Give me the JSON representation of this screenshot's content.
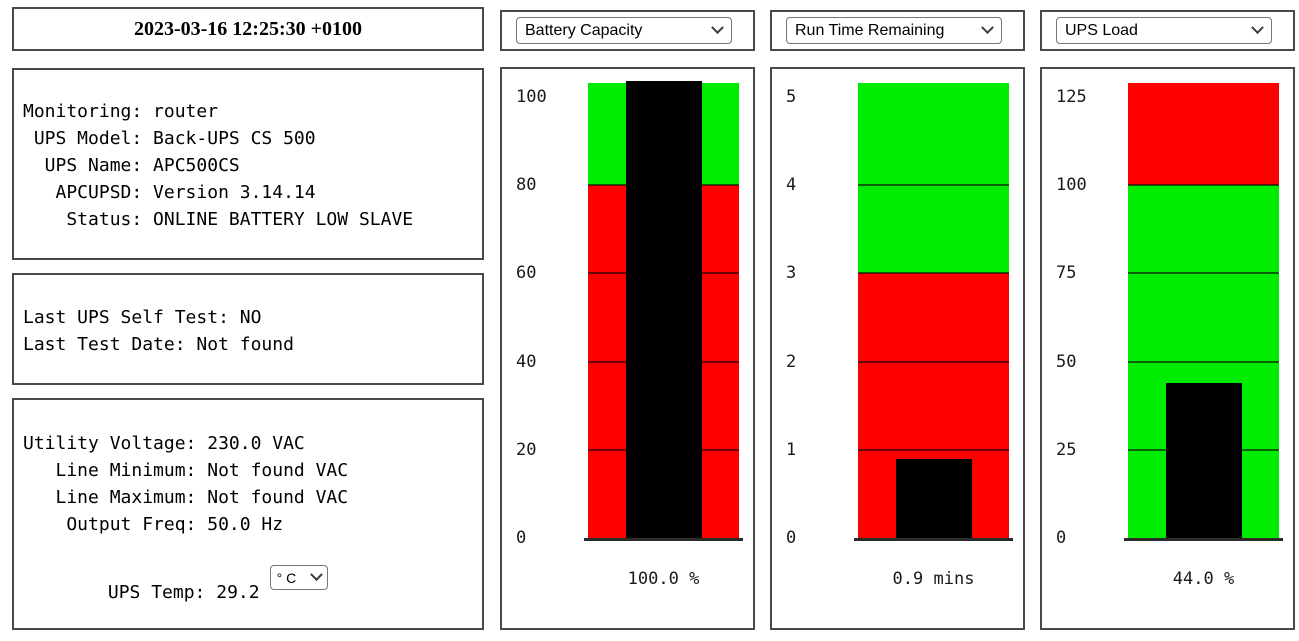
{
  "header": {
    "timestamp": "2023-03-16 12:25:30 +0100"
  },
  "info_panels": {
    "status": {
      "text": "Monitoring: router\n UPS Model: Back-UPS CS 500\n  UPS Name: APC500CS\n   APCUPSD: Version 3.14.14\n    Status: ONLINE BATTERY LOW SLAVE"
    },
    "selftest": {
      "text": "Last UPS Self Test: NO\nLast Test Date: Not found"
    },
    "power": {
      "text": "Utility Voltage: 230.0 VAC\n   Line Minimum: Not found VAC\n   Line Maximum: Not found VAC\n    Output Freq: 50.0 Hz",
      "temp_label": "       UPS Temp: 29.2",
      "temp_unit_selected": "° C"
    }
  },
  "selectors": [
    {
      "selected": "Battery Capacity"
    },
    {
      "selected": "Run Time Remaining"
    },
    {
      "selected": "UPS Load"
    }
  ],
  "colors": {
    "green": "#00ec00",
    "red": "#ff0000",
    "bar": "#000000",
    "border": "#4a4a4a"
  },
  "chart_data": [
    {
      "type": "bar",
      "title": "Battery Capacity",
      "value": 100.0,
      "unit": "%",
      "value_label": "100.0 %",
      "axis_max": 100,
      "ylim": [
        0,
        100
      ],
      "ticks": [
        0,
        20,
        40,
        60,
        80,
        100
      ],
      "grid": true,
      "zones": [
        {
          "from": 0,
          "to": 80,
          "color": "red"
        },
        {
          "from": 80,
          "to": null,
          "color": "green"
        }
      ]
    },
    {
      "type": "bar",
      "title": "Run Time Remaining",
      "value": 0.9,
      "unit": "mins",
      "value_label": "0.9 mins",
      "axis_max": 5,
      "ylim": [
        0,
        5
      ],
      "ticks": [
        0,
        1,
        2,
        3,
        4,
        5
      ],
      "grid": true,
      "zones": [
        {
          "from": 0,
          "to": 3,
          "color": "red"
        },
        {
          "from": 3,
          "to": null,
          "color": "green"
        }
      ]
    },
    {
      "type": "bar",
      "title": "UPS Load",
      "value": 44.0,
      "unit": "%",
      "value_label": "44.0 %",
      "axis_max": 125,
      "ylim": [
        0,
        125
      ],
      "ticks": [
        0,
        25,
        50,
        75,
        100,
        125
      ],
      "grid": true,
      "zones": [
        {
          "from": 0,
          "to": 100,
          "color": "green"
        },
        {
          "from": 100,
          "to": null,
          "color": "red"
        }
      ]
    }
  ]
}
